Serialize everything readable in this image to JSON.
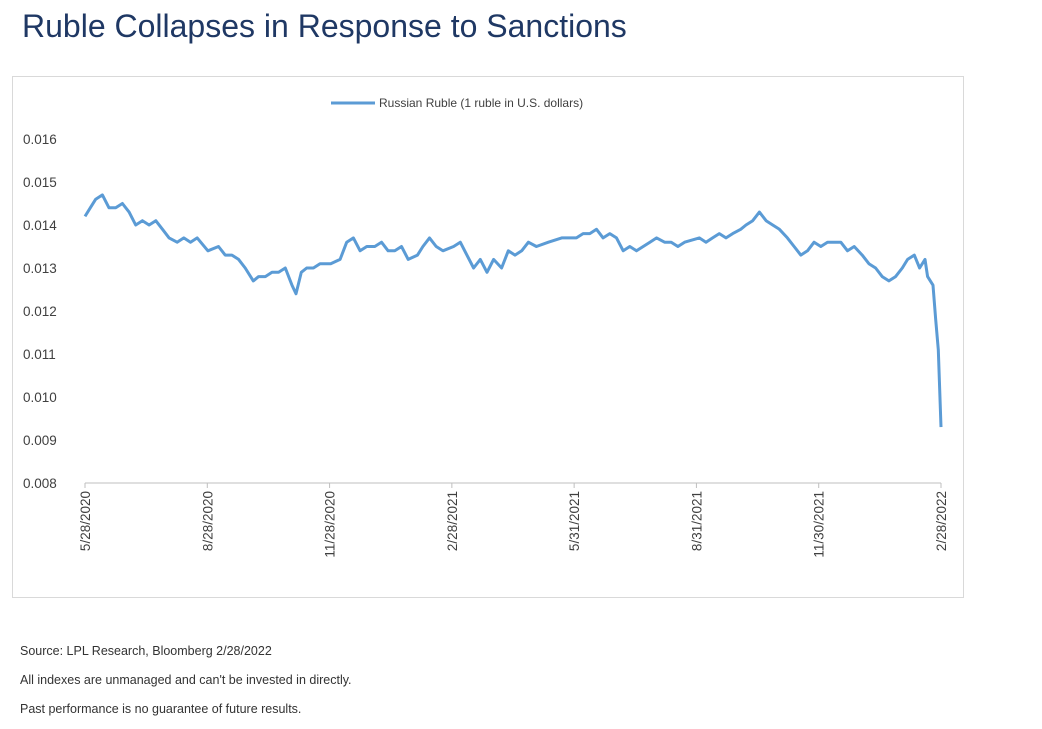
{
  "title": "Ruble Collapses in Response to Sanctions",
  "footnotes": {
    "source": "Source: LPL Research, Bloomberg 2/28/2022",
    "disclaimer1": "All indexes are unmanaged and can't be invested in directly.",
    "disclaimer2": "Past performance is no guarantee of future results."
  },
  "chart_data": {
    "type": "line",
    "title": "",
    "xlabel": "",
    "ylabel": "",
    "ylim": [
      0.008,
      0.016
    ],
    "yticks": [
      "0.016",
      "0.015",
      "0.014",
      "0.013",
      "0.012",
      "0.011",
      "0.010",
      "0.009",
      "0.008"
    ],
    "xtick_labels": [
      "5/28/2020",
      "8/28/2020",
      "11/28/2020",
      "2/28/2021",
      "5/31/2021",
      "8/31/2021",
      "11/30/2021",
      "2/28/2022"
    ],
    "grid": false,
    "legend_position": "top",
    "color": "#5b9bd5",
    "series": [
      {
        "name": "Russian Ruble (1 ruble in U.S. dollars)",
        "points": [
          [
            "2020-05-28",
            0.0142
          ],
          [
            "2020-06-01",
            0.0144
          ],
          [
            "2020-06-05",
            0.0146
          ],
          [
            "2020-06-10",
            0.0147
          ],
          [
            "2020-06-15",
            0.0144
          ],
          [
            "2020-06-20",
            0.0144
          ],
          [
            "2020-06-25",
            0.0145
          ],
          [
            "2020-06-30",
            0.0143
          ],
          [
            "2020-07-05",
            0.014
          ],
          [
            "2020-07-10",
            0.0141
          ],
          [
            "2020-07-15",
            0.014
          ],
          [
            "2020-07-20",
            0.0141
          ],
          [
            "2020-07-25",
            0.0139
          ],
          [
            "2020-07-30",
            0.0137
          ],
          [
            "2020-08-05",
            0.0136
          ],
          [
            "2020-08-10",
            0.0137
          ],
          [
            "2020-08-15",
            0.0136
          ],
          [
            "2020-08-20",
            0.0137
          ],
          [
            "2020-08-28",
            0.0134
          ],
          [
            "2020-09-05",
            0.0135
          ],
          [
            "2020-09-10",
            0.0133
          ],
          [
            "2020-09-15",
            0.0133
          ],
          [
            "2020-09-20",
            0.0132
          ],
          [
            "2020-09-25",
            0.013
          ],
          [
            "2020-10-01",
            0.0127
          ],
          [
            "2020-10-05",
            0.0128
          ],
          [
            "2020-10-10",
            0.0128
          ],
          [
            "2020-10-15",
            0.0129
          ],
          [
            "2020-10-20",
            0.0129
          ],
          [
            "2020-10-25",
            0.013
          ],
          [
            "2020-10-30",
            0.0126
          ],
          [
            "2020-11-02",
            0.0124
          ],
          [
            "2020-11-06",
            0.0129
          ],
          [
            "2020-11-10",
            0.013
          ],
          [
            "2020-11-15",
            0.013
          ],
          [
            "2020-11-20",
            0.0131
          ],
          [
            "2020-11-25",
            0.0131
          ],
          [
            "2020-11-28",
            0.0131
          ],
          [
            "2020-12-05",
            0.0132
          ],
          [
            "2020-12-10",
            0.0136
          ],
          [
            "2020-12-15",
            0.0137
          ],
          [
            "2020-12-20",
            0.0134
          ],
          [
            "2020-12-25",
            0.0135
          ],
          [
            "2020-12-31",
            0.0135
          ],
          [
            "2021-01-05",
            0.0136
          ],
          [
            "2021-01-10",
            0.0134
          ],
          [
            "2021-01-15",
            0.0134
          ],
          [
            "2021-01-20",
            0.0135
          ],
          [
            "2021-01-25",
            0.0132
          ],
          [
            "2021-02-01",
            0.0133
          ],
          [
            "2021-02-05",
            0.0135
          ],
          [
            "2021-02-10",
            0.0137
          ],
          [
            "2021-02-15",
            0.0135
          ],
          [
            "2021-02-20",
            0.0134
          ],
          [
            "2021-02-28",
            0.0135
          ],
          [
            "2021-03-05",
            0.0136
          ],
          [
            "2021-03-10",
            0.0133
          ],
          [
            "2021-03-15",
            0.013
          ],
          [
            "2021-03-20",
            0.0132
          ],
          [
            "2021-03-25",
            0.0129
          ],
          [
            "2021-03-30",
            0.0132
          ],
          [
            "2021-04-05",
            0.013
          ],
          [
            "2021-04-10",
            0.0134
          ],
          [
            "2021-04-15",
            0.0133
          ],
          [
            "2021-04-20",
            0.0134
          ],
          [
            "2021-04-25",
            0.0136
          ],
          [
            "2021-05-01",
            0.0135
          ],
          [
            "2021-05-10",
            0.0136
          ],
          [
            "2021-05-20",
            0.0137
          ],
          [
            "2021-05-31",
            0.0137
          ],
          [
            "2021-06-05",
            0.0138
          ],
          [
            "2021-06-10",
            0.0138
          ],
          [
            "2021-06-15",
            0.0139
          ],
          [
            "2021-06-20",
            0.0137
          ],
          [
            "2021-06-25",
            0.0138
          ],
          [
            "2021-06-30",
            0.0137
          ],
          [
            "2021-07-05",
            0.0134
          ],
          [
            "2021-07-10",
            0.0135
          ],
          [
            "2021-07-15",
            0.0134
          ],
          [
            "2021-07-20",
            0.0135
          ],
          [
            "2021-07-25",
            0.0136
          ],
          [
            "2021-07-30",
            0.0137
          ],
          [
            "2021-08-05",
            0.0136
          ],
          [
            "2021-08-10",
            0.0136
          ],
          [
            "2021-08-15",
            0.0135
          ],
          [
            "2021-08-20",
            0.0136
          ],
          [
            "2021-08-31",
            0.0137
          ],
          [
            "2021-09-05",
            0.0136
          ],
          [
            "2021-09-10",
            0.0137
          ],
          [
            "2021-09-15",
            0.0138
          ],
          [
            "2021-09-20",
            0.0137
          ],
          [
            "2021-09-25",
            0.0138
          ],
          [
            "2021-10-01",
            0.0139
          ],
          [
            "2021-10-05",
            0.014
          ],
          [
            "2021-10-10",
            0.0141
          ],
          [
            "2021-10-15",
            0.0143
          ],
          [
            "2021-10-20",
            0.0141
          ],
          [
            "2021-10-25",
            0.014
          ],
          [
            "2021-10-30",
            0.0139
          ],
          [
            "2021-11-05",
            0.0137
          ],
          [
            "2021-11-10",
            0.0135
          ],
          [
            "2021-11-15",
            0.0133
          ],
          [
            "2021-11-20",
            0.0134
          ],
          [
            "2021-11-25",
            0.0136
          ],
          [
            "2021-11-30",
            0.0135
          ],
          [
            "2021-12-05",
            0.0136
          ],
          [
            "2021-12-10",
            0.0136
          ],
          [
            "2021-12-15",
            0.0136
          ],
          [
            "2021-12-20",
            0.0134
          ],
          [
            "2021-12-25",
            0.0135
          ],
          [
            "2021-12-31",
            0.0133
          ],
          [
            "2022-01-05",
            0.0131
          ],
          [
            "2022-01-10",
            0.013
          ],
          [
            "2022-01-15",
            0.0128
          ],
          [
            "2022-01-20",
            0.0127
          ],
          [
            "2022-01-25",
            0.0128
          ],
          [
            "2022-01-30",
            0.013
          ],
          [
            "2022-02-03",
            0.0132
          ],
          [
            "2022-02-08",
            0.0133
          ],
          [
            "2022-02-12",
            0.013
          ],
          [
            "2022-02-16",
            0.0132
          ],
          [
            "2022-02-18",
            0.0128
          ],
          [
            "2022-02-22",
            0.0126
          ],
          [
            "2022-02-24",
            0.0118
          ],
          [
            "2022-02-26",
            0.0111
          ],
          [
            "2022-02-28",
            0.0093
          ]
        ]
      }
    ]
  }
}
